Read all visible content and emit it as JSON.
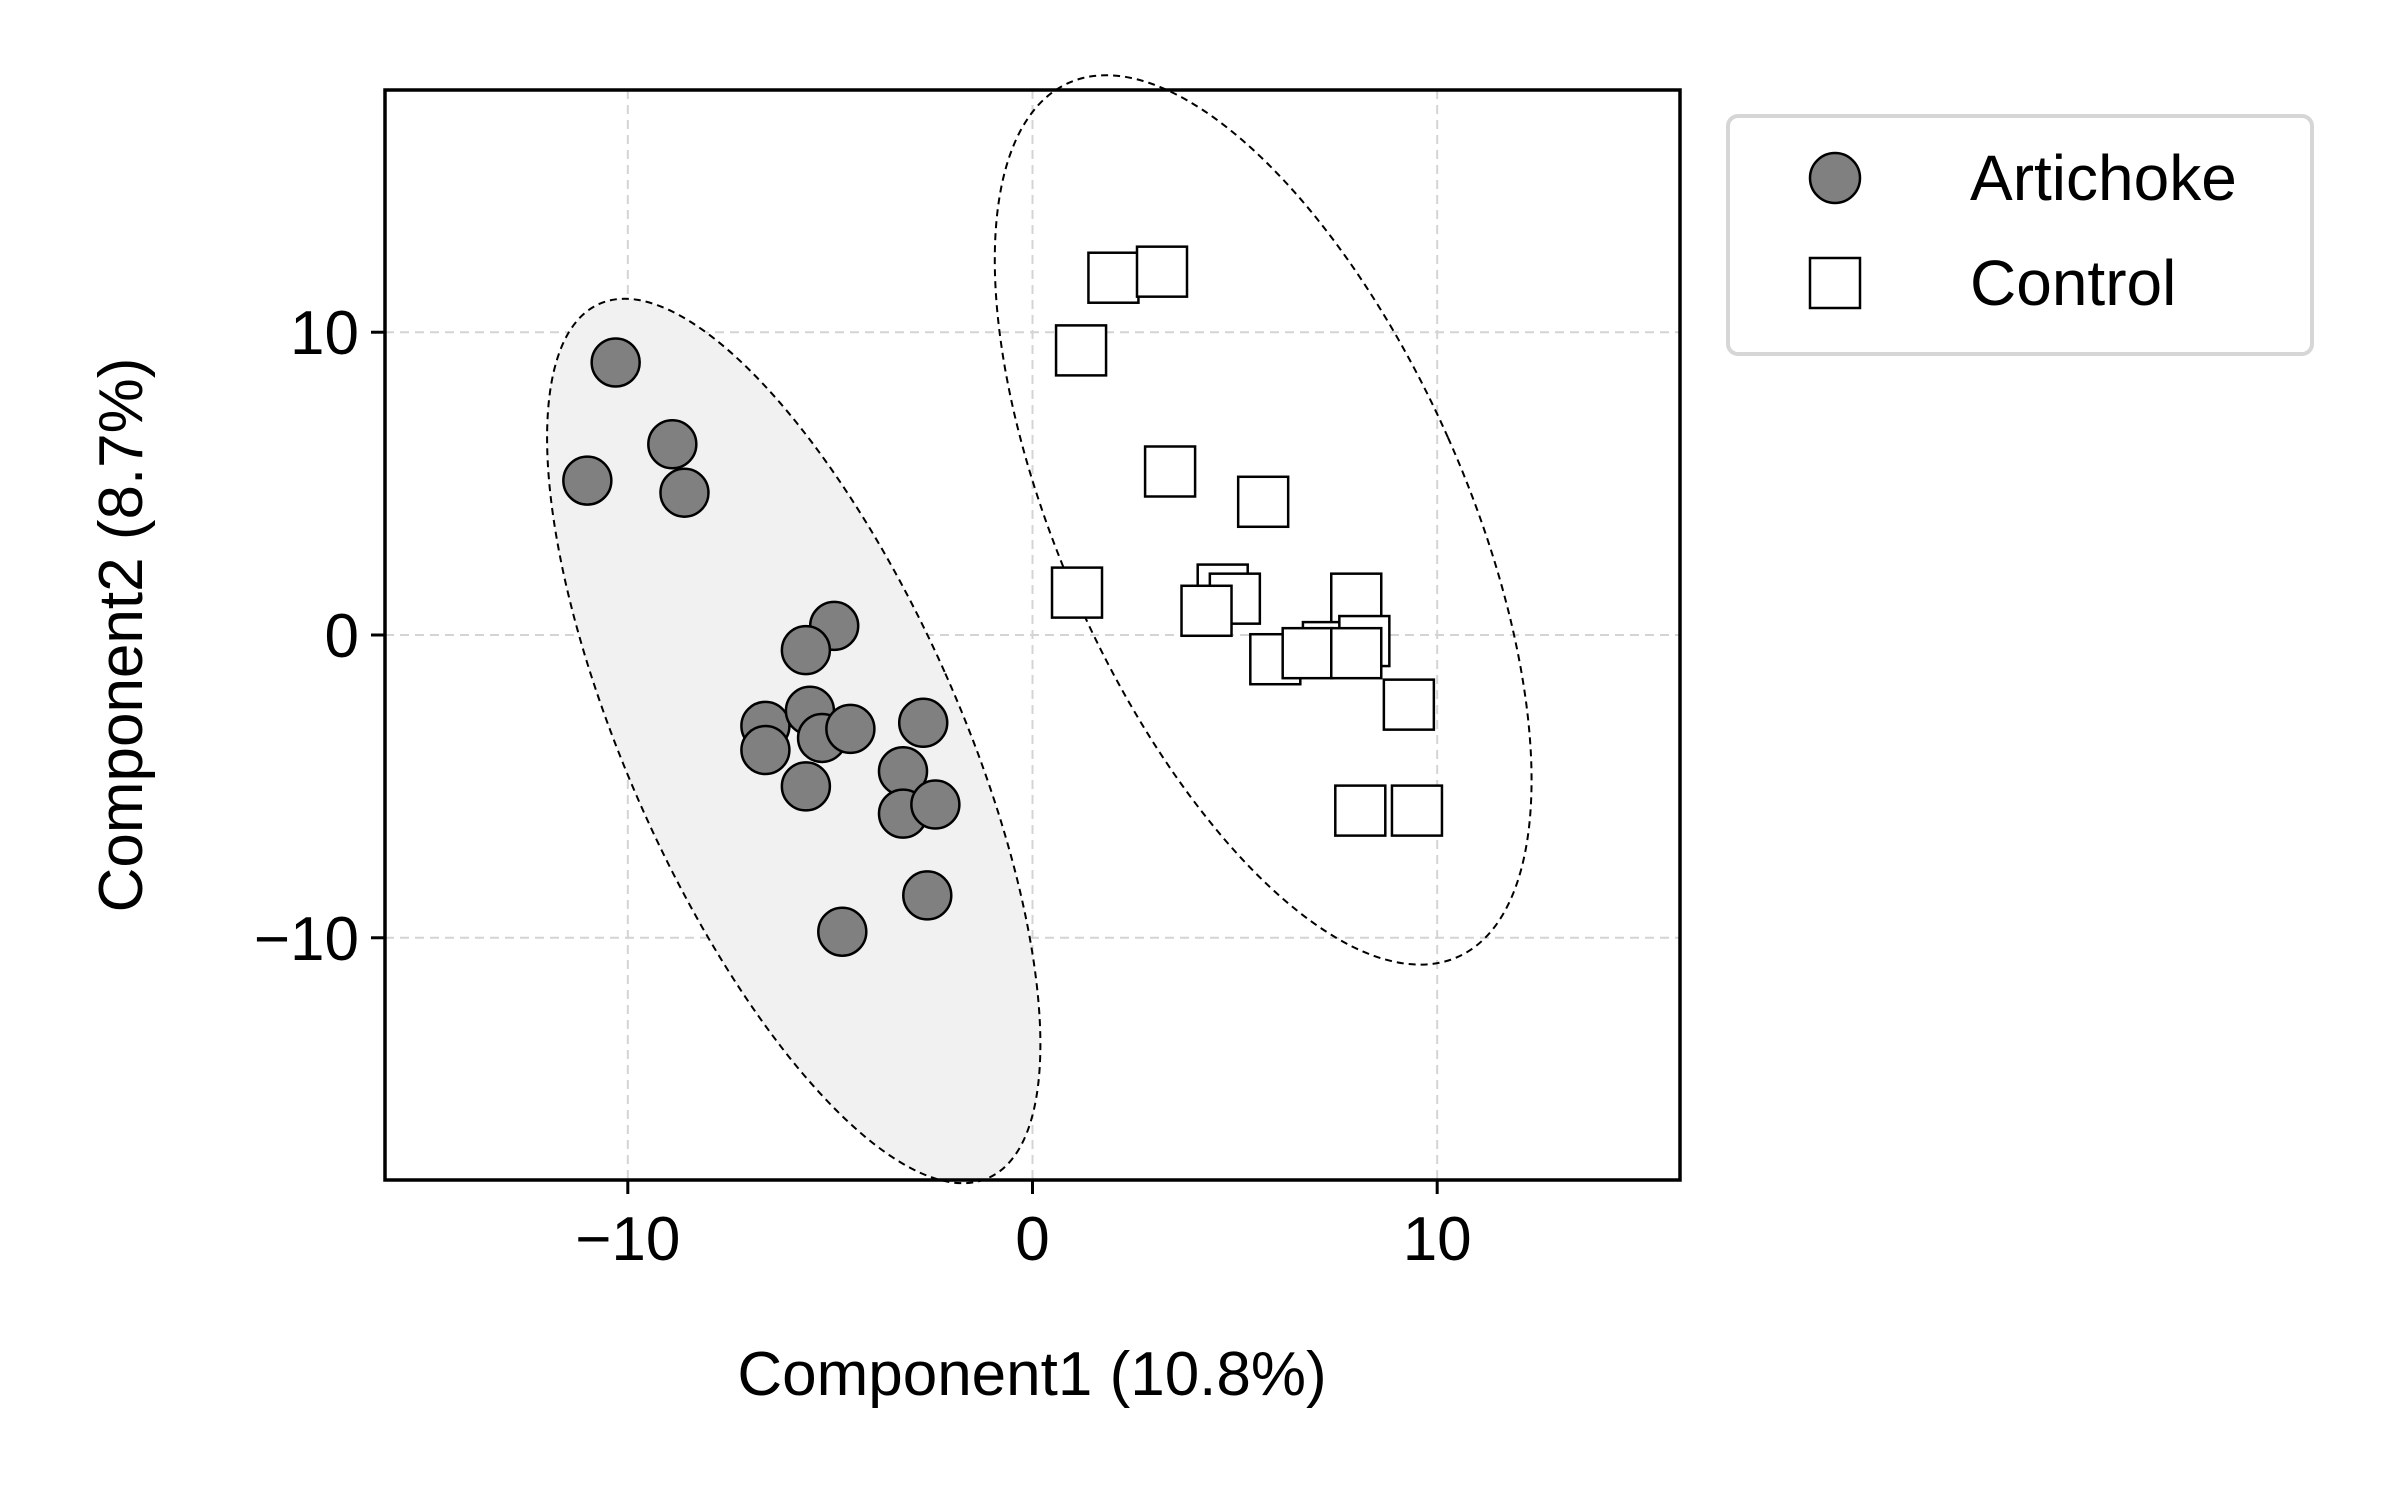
{
  "chart_data": {
    "type": "scatter",
    "xlabel": "Component1 (10.8%)",
    "ylabel": "Component2 (8.7%)",
    "xlim": [
      -16,
      16
    ],
    "ylim": [
      -18,
      18
    ],
    "xticks": [
      -10,
      0,
      10
    ],
    "yticks": [
      -10,
      0,
      10
    ],
    "xtick_labels": [
      "−10",
      "0",
      "10"
    ],
    "ytick_labels": [
      "−10",
      "0",
      "10"
    ],
    "grid": true,
    "legend_position": "outside-top-right",
    "series": [
      {
        "name": "Artichoke",
        "marker": "circle",
        "color": "#808080",
        "edge_color": "#000000",
        "x": [
          -10.3,
          -11.0,
          -8.9,
          -8.6,
          -4.9,
          -5.6,
          -6.6,
          -5.5,
          -5.2,
          -4.5,
          -6.6,
          -5.6,
          -3.2,
          -2.7,
          -3.2,
          -2.4,
          -2.6,
          -4.7
        ],
        "y": [
          9.0,
          5.1,
          6.3,
          4.7,
          0.3,
          -0.5,
          -3.0,
          -2.5,
          -3.4,
          -3.1,
          -3.8,
          -5.0,
          -4.5,
          -2.9,
          -5.9,
          -5.6,
          -8.6,
          -9.8
        ]
      },
      {
        "name": "Control",
        "marker": "square",
        "color": "#ffffff",
        "edge_color": "#000000",
        "x": [
          2.0,
          3.2,
          1.2,
          3.4,
          5.7,
          1.1,
          4.7,
          5.0,
          4.3,
          8.0,
          7.3,
          8.2,
          6.0,
          6.8,
          8.0,
          9.3,
          8.1,
          9.5
        ],
        "y": [
          11.8,
          12.0,
          9.4,
          5.4,
          4.4,
          1.4,
          1.5,
          1.2,
          0.8,
          1.2,
          -0.4,
          -0.2,
          -0.8,
          -0.6,
          -0.6,
          -2.3,
          -5.8,
          -5.8
        ]
      }
    ],
    "ellipses": [
      {
        "group": "Artichoke",
        "cx": -5.9,
        "cy": -3.5,
        "rx": 4.1,
        "ry": 15.8,
        "rotation_deg": 24,
        "fill": "#f1f1f1"
      },
      {
        "group": "Control",
        "cx": 5.7,
        "cy": 3.8,
        "rx": 5.0,
        "ry": 15.8,
        "rotation_deg": 24,
        "fill": "none"
      }
    ]
  }
}
